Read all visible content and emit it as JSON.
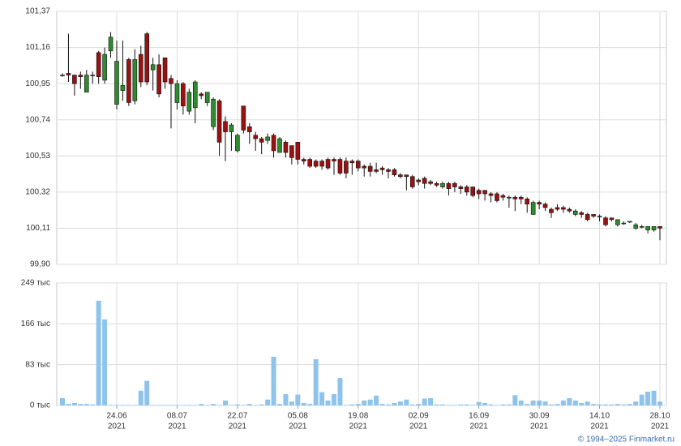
{
  "chart_data": [
    {
      "type": "candlestick",
      "categories": [
        "2021-06-10",
        "2021-06-11",
        "2021-06-15",
        "2021-06-16",
        "2021-06-17",
        "2021-06-18",
        "2021-06-21",
        "2021-06-22",
        "2021-06-23",
        "2021-06-24",
        "2021-06-25",
        "2021-06-28",
        "2021-06-29",
        "2021-06-30",
        "2021-07-01",
        "2021-07-02",
        "2021-07-05",
        "2021-07-06",
        "2021-07-07",
        "2021-07-08",
        "2021-07-09",
        "2021-07-12",
        "2021-07-13",
        "2021-07-14",
        "2021-07-15",
        "2021-07-16",
        "2021-07-19",
        "2021-07-20",
        "2021-07-21",
        "2021-07-22",
        "2021-07-23",
        "2021-07-26",
        "2021-07-27",
        "2021-07-28",
        "2021-07-29",
        "2021-07-30",
        "2021-08-02",
        "2021-08-03",
        "2021-08-04",
        "2021-08-05",
        "2021-08-06",
        "2021-08-09",
        "2021-08-10",
        "2021-08-11",
        "2021-08-12",
        "2021-08-13",
        "2021-08-16",
        "2021-08-17",
        "2021-08-18",
        "2021-08-19",
        "2021-08-20",
        "2021-08-23",
        "2021-08-24",
        "2021-08-25",
        "2021-08-26",
        "2021-08-27",
        "2021-08-30",
        "2021-08-31",
        "2021-09-01",
        "2021-09-02",
        "2021-09-03",
        "2021-09-06",
        "2021-09-07",
        "2021-09-08",
        "2021-09-09",
        "2021-09-10",
        "2021-09-13",
        "2021-09-14",
        "2021-09-15",
        "2021-09-16",
        "2021-09-17",
        "2021-09-20",
        "2021-09-21",
        "2021-09-22",
        "2021-09-23",
        "2021-09-24",
        "2021-09-27",
        "2021-09-28",
        "2021-09-29",
        "2021-09-30",
        "2021-10-01",
        "2021-10-04",
        "2021-10-05",
        "2021-10-06",
        "2021-10-07",
        "2021-10-08",
        "2021-10-11",
        "2021-10-12",
        "2021-10-13",
        "2021-10-14",
        "2021-10-15",
        "2021-10-18",
        "2021-10-19",
        "2021-10-20",
        "2021-10-21",
        "2021-10-22",
        "2021-10-25",
        "2021-10-26",
        "2021-10-27",
        "2021-10-28"
      ],
      "open": [
        101.0,
        101.01,
        101.0,
        101.0,
        100.9,
        101.0,
        101.13,
        100.97,
        101.14,
        100.83,
        100.91,
        101.09,
        100.85,
        101.12,
        101.24,
        101.03,
        101.06,
        101.1,
        100.98,
        100.84,
        100.95,
        100.79,
        100.81,
        100.89,
        100.84,
        100.7,
        100.85,
        100.73,
        100.67,
        100.56,
        100.82,
        100.7,
        100.65,
        100.63,
        100.62,
        100.65,
        100.55,
        100.61,
        100.59,
        100.61,
        100.51,
        100.51,
        100.5,
        100.5,
        100.51,
        100.51,
        100.51,
        100.5,
        100.5,
        100.5,
        100.47,
        100.47,
        100.45,
        100.46,
        100.45,
        100.45,
        100.42,
        100.42,
        100.41,
        100.39,
        100.4,
        100.38,
        100.37,
        100.35,
        100.37,
        100.37,
        100.35,
        100.35,
        100.35,
        100.33,
        100.33,
        100.31,
        100.31,
        100.3,
        100.29,
        100.29,
        100.29,
        100.28,
        100.19,
        100.26,
        100.25,
        100.22,
        100.23,
        100.23,
        100.22,
        100.19,
        100.2,
        100.19,
        100.19,
        100.18,
        100.17,
        100.17,
        100.13,
        100.14,
        100.15,
        100.11,
        100.12,
        100.1,
        100.1,
        100.12
      ],
      "high": [
        101.01,
        101.24,
        101.0,
        101.02,
        101.03,
        101.02,
        101.14,
        101.16,
        101.25,
        101.2,
        101.2,
        101.1,
        101.15,
        101.17,
        101.25,
        101.1,
        101.12,
        101.1,
        101.0,
        100.97,
        100.96,
        100.92,
        100.97,
        100.9,
        100.9,
        100.87,
        100.86,
        100.76,
        100.72,
        100.66,
        100.82,
        100.72,
        100.67,
        100.64,
        100.66,
        100.66,
        100.64,
        100.62,
        100.59,
        100.61,
        100.52,
        100.52,
        100.51,
        100.51,
        100.52,
        100.52,
        100.52,
        100.52,
        100.51,
        100.51,
        100.48,
        100.49,
        100.49,
        100.47,
        100.46,
        100.46,
        100.43,
        100.42,
        100.42,
        100.4,
        100.41,
        100.39,
        100.38,
        100.38,
        100.38,
        100.38,
        100.36,
        100.36,
        100.35,
        100.34,
        100.33,
        100.32,
        100.32,
        100.31,
        100.3,
        100.3,
        100.3,
        100.29,
        100.27,
        100.27,
        100.26,
        100.23,
        100.25,
        100.24,
        100.23,
        100.22,
        100.21,
        100.2,
        100.19,
        100.19,
        100.18,
        100.17,
        100.16,
        100.15,
        100.15,
        100.14,
        100.13,
        100.12,
        100.12,
        100.12
      ],
      "low": [
        100.99,
        100.96,
        100.88,
        100.92,
        100.9,
        100.95,
        100.95,
        100.95,
        101.1,
        100.8,
        100.85,
        100.82,
        100.83,
        100.93,
        100.94,
        100.91,
        100.87,
        100.92,
        100.69,
        100.8,
        100.77,
        100.77,
        100.72,
        100.86,
        100.82,
        100.68,
        100.53,
        100.5,
        100.56,
        100.55,
        100.66,
        100.6,
        100.56,
        100.54,
        100.6,
        100.52,
        100.55,
        100.52,
        100.48,
        100.48,
        100.48,
        100.46,
        100.46,
        100.45,
        100.45,
        100.42,
        100.42,
        100.4,
        100.42,
        100.44,
        100.41,
        100.41,
        100.43,
        100.42,
        100.4,
        100.41,
        100.4,
        100.33,
        100.34,
        100.36,
        100.34,
        100.36,
        100.35,
        100.34,
        100.3,
        100.32,
        100.31,
        100.3,
        100.29,
        100.28,
        100.27,
        100.26,
        100.26,
        100.27,
        100.23,
        100.21,
        100.25,
        100.2,
        100.19,
        100.22,
        100.21,
        100.17,
        100.21,
        100.2,
        100.2,
        100.18,
        100.17,
        100.15,
        100.17,
        100.15,
        100.12,
        100.15,
        100.12,
        100.13,
        100.14,
        100.1,
        100.11,
        100.08,
        100.09,
        100.04
      ],
      "close": [
        101.0,
        101.0,
        100.95,
        100.99,
        101.0,
        101.0,
        100.99,
        101.12,
        101.22,
        101.08,
        100.94,
        100.84,
        101.09,
        100.96,
        100.96,
        101.06,
        100.89,
        100.96,
        100.95,
        100.95,
        100.82,
        100.9,
        100.96,
        100.88,
        100.9,
        100.86,
        100.61,
        100.67,
        100.71,
        100.65,
        100.68,
        100.67,
        100.63,
        100.61,
        100.64,
        100.56,
        100.63,
        100.55,
        100.52,
        100.51,
        100.5,
        100.47,
        100.47,
        100.47,
        100.46,
        100.5,
        100.43,
        100.43,
        100.49,
        100.46,
        100.46,
        100.44,
        100.44,
        100.45,
        100.44,
        100.42,
        100.41,
        100.41,
        100.35,
        100.38,
        100.37,
        100.37,
        100.36,
        100.37,
        100.34,
        100.35,
        100.34,
        100.32,
        100.3,
        100.31,
        100.31,
        100.3,
        100.27,
        100.29,
        100.29,
        100.28,
        100.28,
        100.25,
        100.26,
        100.25,
        100.23,
        100.2,
        100.22,
        100.22,
        100.21,
        100.21,
        100.19,
        100.16,
        100.18,
        100.18,
        100.13,
        100.16,
        100.16,
        100.14,
        100.15,
        100.13,
        100.12,
        100.12,
        100.12,
        100.11
      ],
      "up_color": "#2e8b2e",
      "down_color": "#9b1010",
      "ylim": [
        99.9,
        101.37
      ],
      "yticks": [
        {
          "value": 99.9,
          "label": "99,90"
        },
        {
          "value": 100.11,
          "label": "100,11"
        },
        {
          "value": 100.32,
          "label": "100,32"
        },
        {
          "value": 100.53,
          "label": "100,53"
        },
        {
          "value": 100.74,
          "label": "100,74"
        },
        {
          "value": 100.95,
          "label": "100,95"
        },
        {
          "value": 101.16,
          "label": "101,16"
        },
        {
          "value": 101.37,
          "label": "101,37"
        }
      ],
      "grid": true
    },
    {
      "type": "bar",
      "categories": [
        "2021-06-10",
        "2021-06-11",
        "2021-06-15",
        "2021-06-16",
        "2021-06-17",
        "2021-06-18",
        "2021-06-21",
        "2021-06-22",
        "2021-06-23",
        "2021-06-24",
        "2021-06-25",
        "2021-06-28",
        "2021-06-29",
        "2021-06-30",
        "2021-07-01",
        "2021-07-02",
        "2021-07-05",
        "2021-07-06",
        "2021-07-07",
        "2021-07-08",
        "2021-07-09",
        "2021-07-12",
        "2021-07-13",
        "2021-07-14",
        "2021-07-15",
        "2021-07-16",
        "2021-07-19",
        "2021-07-20",
        "2021-07-21",
        "2021-07-22",
        "2021-07-23",
        "2021-07-26",
        "2021-07-27",
        "2021-07-28",
        "2021-07-29",
        "2021-07-30",
        "2021-08-02",
        "2021-08-03",
        "2021-08-04",
        "2021-08-05",
        "2021-08-06",
        "2021-08-09",
        "2021-08-10",
        "2021-08-11",
        "2021-08-12",
        "2021-08-13",
        "2021-08-16",
        "2021-08-17",
        "2021-08-18",
        "2021-08-19",
        "2021-08-20",
        "2021-08-23",
        "2021-08-24",
        "2021-08-25",
        "2021-08-26",
        "2021-08-27",
        "2021-08-30",
        "2021-08-31",
        "2021-09-01",
        "2021-09-02",
        "2021-09-03",
        "2021-09-06",
        "2021-09-07",
        "2021-09-08",
        "2021-09-09",
        "2021-09-10",
        "2021-09-13",
        "2021-09-14",
        "2021-09-15",
        "2021-09-16",
        "2021-09-17",
        "2021-09-20",
        "2021-09-21",
        "2021-09-22",
        "2021-09-23",
        "2021-09-24",
        "2021-09-27",
        "2021-09-28",
        "2021-09-29",
        "2021-09-30",
        "2021-10-01",
        "2021-10-04",
        "2021-10-05",
        "2021-10-06",
        "2021-10-07",
        "2021-10-08",
        "2021-10-11",
        "2021-10-12",
        "2021-10-13",
        "2021-10-14",
        "2021-10-15",
        "2021-10-18",
        "2021-10-19",
        "2021-10-20",
        "2021-10-21",
        "2021-10-22",
        "2021-10-25",
        "2021-10-26",
        "2021-10-27",
        "2021-10-28"
      ],
      "values": [
        15,
        3,
        5,
        3,
        3,
        2,
        213,
        175,
        1,
        1,
        1,
        1,
        1,
        30,
        50,
        1,
        1,
        1,
        1,
        1,
        1,
        1,
        1,
        3,
        1,
        3,
        1,
        10,
        1,
        2,
        1,
        3,
        1,
        2,
        12,
        99,
        3,
        23,
        8,
        22,
        5,
        3,
        94,
        27,
        10,
        23,
        56,
        1,
        2,
        3,
        10,
        12,
        20,
        3,
        2,
        5,
        8,
        12,
        2,
        3,
        14,
        15,
        2,
        2,
        1,
        1,
        2,
        2,
        1,
        7,
        5,
        2,
        1,
        2,
        2,
        21,
        10,
        3,
        10,
        10,
        8,
        2,
        3,
        10,
        15,
        10,
        5,
        8,
        3,
        2,
        2,
        2,
        3,
        2,
        3,
        8,
        22,
        28,
        30,
        8
      ],
      "color": "#8ec3ec",
      "ylim": [
        0,
        249
      ],
      "yticks": [
        {
          "value": 0,
          "label": "0 тыс"
        },
        {
          "value": 83,
          "label": "83 тыс"
        },
        {
          "value": 166,
          "label": "166 тыс"
        },
        {
          "value": 249,
          "label": "249 тыс"
        }
      ],
      "xticks": [
        {
          "value": "2021-06-24",
          "label": "24.06",
          "year": "2021"
        },
        {
          "value": "2021-07-08",
          "label": "08.07",
          "year": "2021"
        },
        {
          "value": "2021-07-22",
          "label": "22.07",
          "year": "2021"
        },
        {
          "value": "2021-08-05",
          "label": "05.08",
          "year": "2021"
        },
        {
          "value": "2021-08-19",
          "label": "19.08",
          "year": "2021"
        },
        {
          "value": "2021-09-02",
          "label": "02.09",
          "year": "2021"
        },
        {
          "value": "2021-09-16",
          "label": "16.09",
          "year": "2021"
        },
        {
          "value": "2021-09-30",
          "label": "30.09",
          "year": "2021"
        },
        {
          "value": "2021-10-14",
          "label": "14.10",
          "year": "2021"
        },
        {
          "value": "2021-10-28",
          "label": "28.10",
          "year": "2021"
        }
      ],
      "grid": true
    }
  ],
  "credit": "© 1994–2025 Finmarket.ru"
}
